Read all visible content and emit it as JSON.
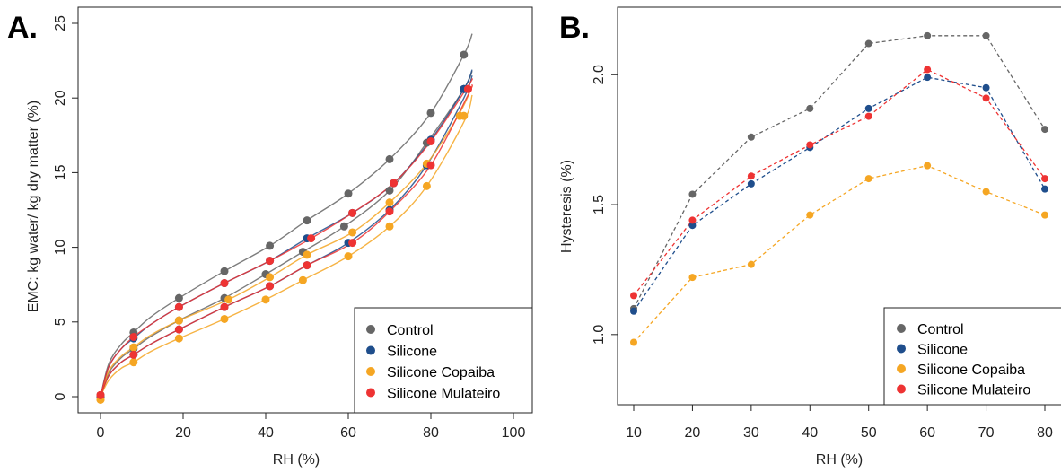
{
  "chart_data": [
    {
      "panel_label": "A.",
      "type": "scatter",
      "xlabel": "RH (%)",
      "ylabel": "EMC: kg water/ kg dry matter (%)",
      "xlim": [
        0,
        100
      ],
      "ylim": [
        0,
        25
      ],
      "x_ticks": [
        "0",
        "20",
        "40",
        "60",
        "80",
        "100"
      ],
      "y_ticks": [
        "0",
        "5",
        "10",
        "15",
        "20",
        "25"
      ],
      "legend_position": "bottom-right",
      "fitted_curves": true,
      "series": [
        {
          "name": "Control",
          "color": "#666666",
          "desorption": [
            [
              0,
              0.1
            ],
            [
              8,
              4.3
            ],
            [
              19,
              6.6
            ],
            [
              30,
              8.4
            ],
            [
              41,
              10.1
            ],
            [
              50,
              11.8
            ],
            [
              60,
              13.6
            ],
            [
              70,
              15.9
            ],
            [
              80,
              19.0
            ],
            [
              88,
              22.9
            ]
          ],
          "adsorption": [
            [
              0,
              0.1
            ],
            [
              8,
              3.2
            ],
            [
              19,
              5.1
            ],
            [
              30,
              6.6
            ],
            [
              40,
              8.2
            ],
            [
              49,
              9.7
            ],
            [
              59,
              11.4
            ],
            [
              70,
              13.8
            ],
            [
              79,
              17.0
            ],
            [
              88,
              20.6
            ]
          ],
          "curve_desorption": [
            [
              0,
              0
            ],
            [
              2,
              2.2
            ],
            [
              5,
              3.5
            ],
            [
              8,
              4.3
            ],
            [
              12,
              5.3
            ],
            [
              19,
              6.6
            ],
            [
              30,
              8.4
            ],
            [
              41,
              10.1
            ],
            [
              50,
              11.8
            ],
            [
              60,
              13.6
            ],
            [
              70,
              15.9
            ],
            [
              80,
              19.0
            ],
            [
              88,
              22.9
            ],
            [
              90,
              24.3
            ]
          ],
          "curve_adsorption": [
            [
              0,
              0
            ],
            [
              2,
              1.6
            ],
            [
              5,
              2.6
            ],
            [
              8,
              3.2
            ],
            [
              12,
              4.0
            ],
            [
              19,
              5.1
            ],
            [
              30,
              6.6
            ],
            [
              40,
              8.2
            ],
            [
              49,
              9.7
            ],
            [
              59,
              11.4
            ],
            [
              70,
              13.8
            ],
            [
              79,
              17.0
            ],
            [
              88,
              20.6
            ],
            [
              90,
              21.8
            ]
          ]
        },
        {
          "name": "Silicone",
          "color": "#1f4e8c",
          "desorption": [
            [
              0,
              0
            ],
            [
              8,
              3.9
            ],
            [
              19,
              6.0
            ],
            [
              30,
              7.6
            ],
            [
              41,
              9.1
            ],
            [
              50,
              10.6
            ],
            [
              61,
              12.3
            ],
            [
              71,
              14.3
            ],
            [
              80,
              17.2
            ],
            [
              88,
              20.6
            ]
          ],
          "adsorption": [
            [
              0,
              0
            ],
            [
              8,
              2.8
            ],
            [
              19,
              4.5
            ],
            [
              30,
              6.0
            ],
            [
              41,
              7.4
            ],
            [
              50,
              8.8
            ],
            [
              60,
              10.3
            ],
            [
              70,
              12.5
            ],
            [
              79,
              15.5
            ],
            [
              88,
              20.6
            ]
          ],
          "curve_desorption": [
            [
              0,
              0
            ],
            [
              2,
              2.0
            ],
            [
              5,
              3.2
            ],
            [
              8,
              3.9
            ],
            [
              12,
              4.8
            ],
            [
              19,
              6.0
            ],
            [
              30,
              7.6
            ],
            [
              41,
              9.1
            ],
            [
              50,
              10.6
            ],
            [
              61,
              12.3
            ],
            [
              71,
              14.3
            ],
            [
              80,
              17.2
            ],
            [
              88,
              20.6
            ],
            [
              90,
              21.9
            ]
          ],
          "curve_adsorption": [
            [
              0,
              0
            ],
            [
              2,
              1.4
            ],
            [
              5,
              2.3
            ],
            [
              8,
              2.8
            ],
            [
              12,
              3.5
            ],
            [
              19,
              4.5
            ],
            [
              30,
              6.0
            ],
            [
              41,
              7.4
            ],
            [
              50,
              8.8
            ],
            [
              60,
              10.3
            ],
            [
              70,
              12.5
            ],
            [
              79,
              15.5
            ],
            [
              88,
              20.0
            ],
            [
              90,
              21.5
            ]
          ]
        },
        {
          "name": "Silicone Copaiba",
          "color": "#f5a623",
          "desorption": [
            [
              0,
              -0.2
            ],
            [
              8,
              3.3
            ],
            [
              19,
              5.1
            ],
            [
              31,
              6.5
            ],
            [
              41,
              8.0
            ],
            [
              50,
              9.5
            ],
            [
              61,
              11.0
            ],
            [
              70,
              13.0
            ],
            [
              79,
              15.6
            ],
            [
              87,
              18.8
            ]
          ],
          "adsorption": [
            [
              0,
              -0.2
            ],
            [
              8,
              2.3
            ],
            [
              19,
              3.9
            ],
            [
              30,
              5.2
            ],
            [
              40,
              6.5
            ],
            [
              49,
              7.8
            ],
            [
              60,
              9.4
            ],
            [
              70,
              11.4
            ],
            [
              79,
              14.1
            ],
            [
              88,
              18.8
            ]
          ],
          "curve_desorption": [
            [
              0,
              0
            ],
            [
              2,
              1.7
            ],
            [
              5,
              2.7
            ],
            [
              8,
              3.3
            ],
            [
              12,
              4.1
            ],
            [
              19,
              5.1
            ],
            [
              31,
              6.5
            ],
            [
              41,
              8.0
            ],
            [
              50,
              9.5
            ],
            [
              61,
              11.0
            ],
            [
              70,
              13.0
            ],
            [
              79,
              15.6
            ],
            [
              87,
              19.0
            ],
            [
              90,
              20.8
            ]
          ],
          "curve_adsorption": [
            [
              0,
              0
            ],
            [
              2,
              1.1
            ],
            [
              5,
              1.9
            ],
            [
              8,
              2.3
            ],
            [
              12,
              3.0
            ],
            [
              19,
              3.9
            ],
            [
              30,
              5.2
            ],
            [
              40,
              6.5
            ],
            [
              49,
              7.8
            ],
            [
              60,
              9.4
            ],
            [
              70,
              11.4
            ],
            [
              79,
              14.1
            ],
            [
              88,
              18.4
            ],
            [
              90,
              20.2
            ]
          ]
        },
        {
          "name": "Silicone Mulateiro",
          "color": "#ee3333",
          "desorption": [
            [
              0,
              0.1
            ],
            [
              8,
              4.0
            ],
            [
              19,
              6.0
            ],
            [
              30,
              7.6
            ],
            [
              41,
              9.1
            ],
            [
              51,
              10.6
            ],
            [
              61,
              12.3
            ],
            [
              71,
              14.3
            ],
            [
              80,
              17.1
            ],
            [
              89,
              20.6
            ]
          ],
          "adsorption": [
            [
              0,
              0.1
            ],
            [
              8,
              2.8
            ],
            [
              19,
              4.5
            ],
            [
              30,
              6.0
            ],
            [
              41,
              7.4
            ],
            [
              50,
              8.8
            ],
            [
              61,
              10.3
            ],
            [
              70,
              12.4
            ],
            [
              80,
              15.5
            ],
            [
              89,
              20.6
            ]
          ],
          "curve_desorption": [
            [
              0,
              0
            ],
            [
              2,
              2.0
            ],
            [
              5,
              3.2
            ],
            [
              8,
              4.0
            ],
            [
              12,
              4.8
            ],
            [
              19,
              6.0
            ],
            [
              30,
              7.6
            ],
            [
              41,
              9.1
            ],
            [
              51,
              10.6
            ],
            [
              61,
              12.3
            ],
            [
              71,
              14.3
            ],
            [
              80,
              17.1
            ],
            [
              89,
              20.8
            ],
            [
              90,
              21.3
            ]
          ],
          "curve_adsorption": [
            [
              0,
              0
            ],
            [
              2,
              1.4
            ],
            [
              5,
              2.3
            ],
            [
              8,
              2.8
            ],
            [
              12,
              3.5
            ],
            [
              19,
              4.5
            ],
            [
              30,
              6.0
            ],
            [
              41,
              7.4
            ],
            [
              50,
              8.8
            ],
            [
              61,
              10.3
            ],
            [
              70,
              12.4
            ],
            [
              80,
              15.5
            ],
            [
              89,
              20.2
            ],
            [
              90,
              20.9
            ]
          ]
        }
      ]
    },
    {
      "panel_label": "B.",
      "type": "line",
      "xlabel": "RH (%)",
      "ylabel": "Hysteresis (%)",
      "x": [
        10,
        20,
        30,
        40,
        50,
        60,
        70,
        80
      ],
      "x_ticks": [
        "10",
        "20",
        "30",
        "40",
        "50",
        "60",
        "70",
        "80"
      ],
      "y_ticks": [
        "1.0",
        "1.5",
        "2.0"
      ],
      "xlim": [
        10,
        80
      ],
      "ylim": [
        0.73,
        2.26
      ],
      "line_style": "dashed",
      "legend_position": "bottom-right",
      "series": [
        {
          "name": "Control",
          "color": "#666666",
          "values": [
            1.1,
            1.54,
            1.76,
            1.87,
            2.12,
            2.15,
            2.15,
            1.79
          ]
        },
        {
          "name": "Silicone",
          "color": "#1f4e8c",
          "values": [
            1.09,
            1.42,
            1.58,
            1.72,
            1.87,
            1.99,
            1.95,
            1.56
          ]
        },
        {
          "name": "Silicone Copaiba",
          "color": "#f5a623",
          "values": [
            0.97,
            1.22,
            1.27,
            1.46,
            1.6,
            1.65,
            1.55,
            1.46
          ]
        },
        {
          "name": "Silicone Mulateiro",
          "color": "#ee3333",
          "values": [
            1.15,
            1.44,
            1.61,
            1.73,
            1.84,
            2.02,
            1.91,
            1.6
          ]
        }
      ]
    }
  ]
}
